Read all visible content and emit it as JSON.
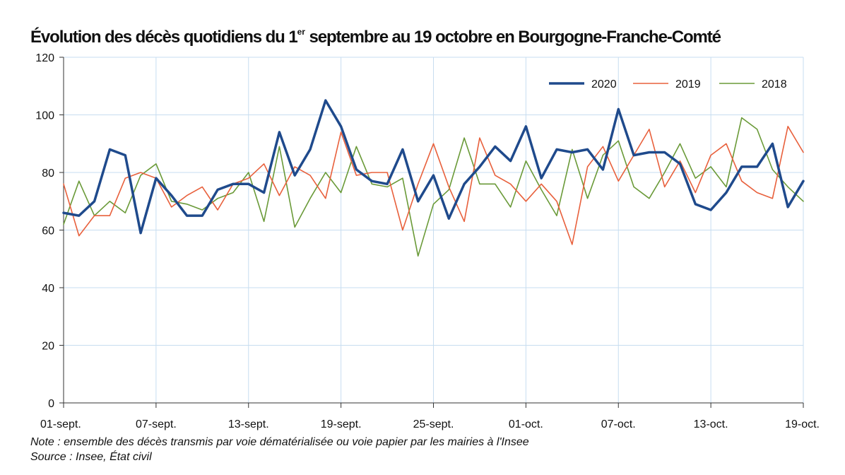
{
  "title": {
    "before": "Évolution des décès quotidiens du 1",
    "sup": "er",
    "after": " septembre au 19 octobre en Bourgogne-Franche-Comté"
  },
  "notes": {
    "note": "Note : ensemble des décès transmis par voie dématérialisée ou voie papier par les mairies à l'Insee",
    "source": "Source : Insee, État civil"
  },
  "chart_data": {
    "type": "line",
    "x": [
      "01-sept.",
      "02-sept.",
      "03-sept.",
      "04-sept.",
      "05-sept.",
      "06-sept.",
      "07-sept.",
      "08-sept.",
      "09-sept.",
      "10-sept.",
      "11-sept.",
      "12-sept.",
      "13-sept.",
      "14-sept.",
      "15-sept.",
      "16-sept.",
      "17-sept.",
      "18-sept.",
      "19-sept.",
      "20-sept.",
      "21-sept.",
      "22-sept.",
      "23-sept.",
      "24-sept.",
      "25-sept.",
      "26-sept.",
      "27-sept.",
      "28-sept.",
      "29-sept.",
      "30-sept.",
      "01-oct.",
      "02-oct.",
      "03-oct.",
      "04-oct.",
      "05-oct.",
      "06-oct.",
      "07-oct.",
      "08-oct.",
      "09-oct.",
      "10-oct.",
      "11-oct.",
      "12-oct.",
      "13-oct.",
      "14-oct.",
      "15-oct.",
      "16-oct.",
      "17-oct.",
      "18-oct.",
      "19-oct."
    ],
    "tick_labels": [
      "01-sept.",
      "07-sept.",
      "13-sept.",
      "19-sept.",
      "25-sept.",
      "01-oct.",
      "07-oct.",
      "13-oct.",
      "19-oct."
    ],
    "series": [
      {
        "name": "2020",
        "color": "#1f4a8c",
        "width": 3.5,
        "values": [
          66,
          65,
          70,
          88,
          86,
          59,
          78,
          72,
          65,
          65,
          74,
          76,
          76,
          73,
          94,
          79,
          88,
          105,
          96,
          81,
          77,
          76,
          88,
          70,
          79,
          64,
          76,
          82,
          89,
          84,
          96,
          78,
          88,
          87,
          88,
          81,
          102,
          86,
          87,
          87,
          83,
          69,
          67,
          73,
          82,
          82,
          90,
          68,
          77
        ]
      },
      {
        "name": "2019",
        "color": "#e8603c",
        "width": 1.6,
        "values": [
          76,
          58,
          65,
          65,
          78,
          80,
          78,
          68,
          72,
          75,
          67,
          76,
          78,
          83,
          72,
          82,
          79,
          71,
          94,
          79,
          80,
          80,
          60,
          76,
          90,
          75,
          63,
          92,
          79,
          76,
          70,
          76,
          70,
          55,
          82,
          89,
          77,
          86,
          95,
          75,
          84,
          73,
          86,
          90,
          77,
          73,
          71,
          96,
          87
        ]
      },
      {
        "name": "2018",
        "color": "#6a9a38",
        "width": 1.6,
        "values": [
          62,
          77,
          65,
          70,
          66,
          79,
          83,
          70,
          69,
          67,
          71,
          73,
          80,
          63,
          89,
          61,
          71,
          80,
          73,
          89,
          76,
          75,
          78,
          51,
          69,
          74,
          92,
          76,
          76,
          68,
          84,
          74,
          65,
          88,
          71,
          86,
          91,
          75,
          71,
          80,
          90,
          78,
          82,
          75,
          99,
          95,
          81,
          75,
          70
        ]
      }
    ],
    "ylim": [
      0,
      120
    ],
    "yticks": [
      0,
      20,
      40,
      60,
      80,
      100,
      120
    ],
    "xlabel": "",
    "ylabel": "",
    "grid": true,
    "legend": "top-right"
  }
}
